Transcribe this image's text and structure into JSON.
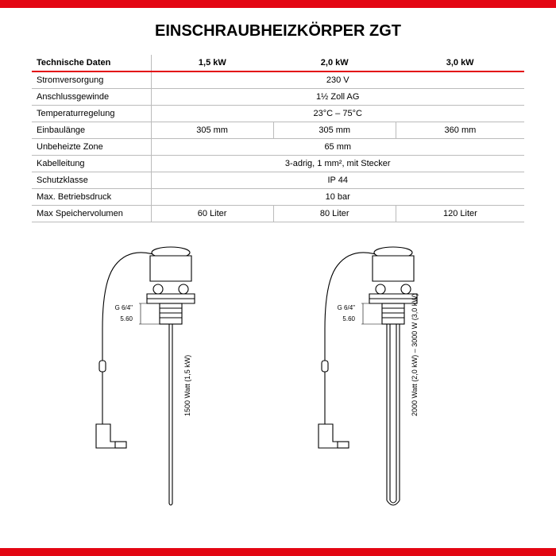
{
  "title": "EINSCHRAUBHEIZKÖRPER ZGT",
  "accent_color": "#e30613",
  "border_color": "#bbbbbb",
  "table": {
    "header_label": "Technische Daten",
    "columns": [
      "1,5 kW",
      "2,0 kW",
      "3,0 kW"
    ],
    "rows": [
      {
        "label": "Stromversorgung",
        "values": [
          "230 V"
        ]
      },
      {
        "label": "Anschlussgewinde",
        "values": [
          "1½ Zoll AG"
        ]
      },
      {
        "label": "Temperaturregelung",
        "values": [
          "23°C – 75°C"
        ]
      },
      {
        "label": "Einbaulänge",
        "values": [
          "305 mm",
          "305 mm",
          "360 mm"
        ]
      },
      {
        "label": "Unbeheizte Zone",
        "values": [
          "65 mm"
        ]
      },
      {
        "label": "Kabelleitung",
        "values": [
          "3-adrig, 1 mm², mit Stecker"
        ]
      },
      {
        "label": "Schutzklasse",
        "values": [
          "IP 44"
        ]
      },
      {
        "label": "Max. Betriebsdruck",
        "values": [
          "10 bar"
        ]
      },
      {
        "label": "Max Speichervolumen",
        "values": [
          "60 Liter",
          "80 Liter",
          "120 Liter"
        ]
      }
    ]
  },
  "diagrams": {
    "thread_label": "G 6/4\"",
    "thread_dim": "5.60",
    "left_caption": "1500 Watt (1,5 kW)",
    "right_caption": "2000 Watt (2,0 kW) – 3000 W (3,0 kW)",
    "stroke": "#000000",
    "stroke_width": 1.1,
    "label_fontsize": 8
  }
}
